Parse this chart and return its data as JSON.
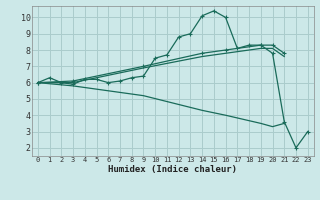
{
  "background_color": "#cce8e8",
  "grid_color": "#aacccc",
  "line_color": "#1a6b5a",
  "marker": "+",
  "xlabel": "Humidex (Indice chaleur)",
  "xlim": [
    -0.5,
    23.5
  ],
  "ylim": [
    1.5,
    10.7
  ],
  "xticks": [
    0,
    1,
    2,
    3,
    4,
    5,
    6,
    7,
    8,
    9,
    10,
    11,
    12,
    13,
    14,
    15,
    16,
    17,
    18,
    19,
    20,
    21,
    22,
    23
  ],
  "yticks": [
    2,
    3,
    4,
    5,
    6,
    7,
    8,
    9,
    10
  ],
  "series": [
    {
      "x": [
        0,
        1,
        2,
        3,
        4,
        5,
        6,
        7,
        8,
        9,
        10,
        11,
        12,
        13,
        14,
        15,
        16,
        17,
        18,
        19,
        20,
        21,
        22,
        23
      ],
      "y": [
        6.0,
        6.3,
        6.0,
        5.9,
        6.2,
        6.2,
        6.0,
        6.1,
        6.3,
        6.4,
        7.5,
        7.7,
        8.8,
        9.0,
        10.1,
        10.4,
        10.0,
        8.1,
        8.3,
        8.3,
        7.8,
        3.6,
        2.0,
        3.0
      ],
      "has_marker": true
    },
    {
      "x": [
        0,
        3,
        9,
        14,
        16,
        19,
        20,
        21
      ],
      "y": [
        6.0,
        6.1,
        7.0,
        7.8,
        8.0,
        8.3,
        8.3,
        7.8
      ],
      "has_marker": true
    },
    {
      "x": [
        0,
        3,
        9,
        14,
        16,
        19,
        20,
        21
      ],
      "y": [
        6.0,
        6.0,
        6.9,
        7.6,
        7.8,
        8.1,
        8.1,
        7.6
      ],
      "has_marker": false
    },
    {
      "x": [
        0,
        3,
        9,
        14,
        16,
        19,
        20,
        21
      ],
      "y": [
        6.0,
        5.8,
        5.2,
        4.3,
        4.0,
        3.5,
        3.3,
        3.5
      ],
      "has_marker": false
    }
  ]
}
